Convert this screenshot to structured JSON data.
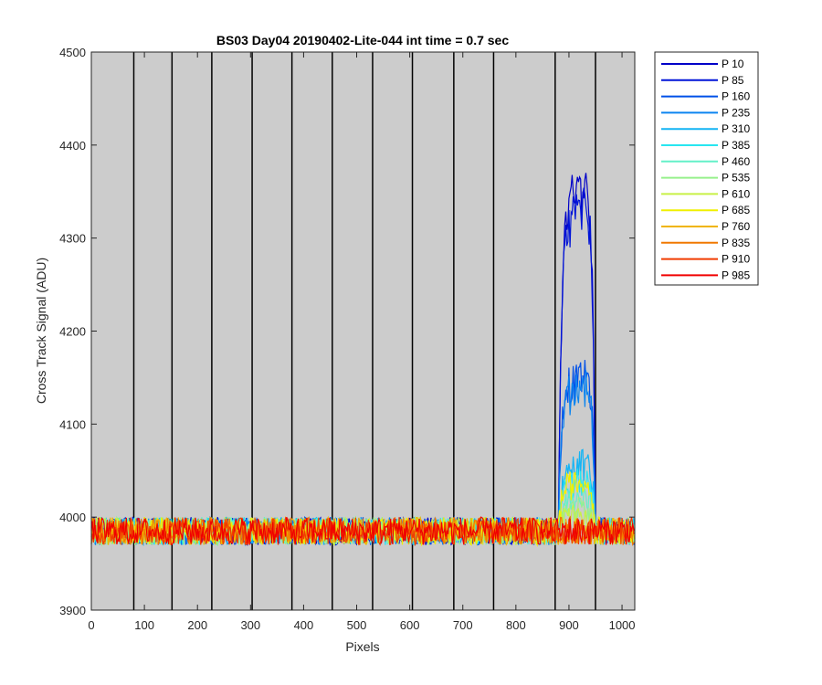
{
  "chart_data": {
    "type": "line",
    "title": "BS03 Day04 20190402-Lite-044 int time = 0.7 sec",
    "xlabel": "Pixels",
    "ylabel": "Cross Track Signal (ADU)",
    "xlim": [
      0,
      1024
    ],
    "ylim": [
      3900,
      4500
    ],
    "xticks": [
      "0",
      "100",
      "200",
      "300",
      "400",
      "500",
      "600",
      "700",
      "800",
      "900",
      "1000"
    ],
    "yticks": [
      "3900",
      "4000",
      "4100",
      "4200",
      "4300",
      "4400",
      "4500"
    ],
    "background": "#cccccc",
    "grid": false,
    "vertical_dividers": [
      80,
      152,
      227,
      303,
      378,
      454,
      530,
      605,
      683,
      758,
      874,
      950
    ],
    "baseline": 3985,
    "noise_amplitude": 15,
    "peak_region": [
      880,
      950
    ],
    "legend_position": "outside-right",
    "series": [
      {
        "name": "P 10",
        "color": "#0000c8",
        "peak": 4380
      },
      {
        "name": "P 85",
        "color": "#0014d8",
        "peak": 4360
      },
      {
        "name": "P 160",
        "color": "#0050e8",
        "peak": 4160
      },
      {
        "name": "P 235",
        "color": "#0a84f0",
        "peak": 4150
      },
      {
        "name": "P 310",
        "color": "#14b4f4",
        "peak": 4060
      },
      {
        "name": "P 385",
        "color": "#28e6f0",
        "peak": 4040
      },
      {
        "name": "P 460",
        "color": "#64f0c8",
        "peak": 4020
      },
      {
        "name": "P 535",
        "color": "#96f08c",
        "peak": 4010
      },
      {
        "name": "P 610",
        "color": "#c8f046",
        "peak": 4000
      },
      {
        "name": "P 685",
        "color": "#f0f000",
        "peak": 4040
      },
      {
        "name": "P 760",
        "color": "#f0b400",
        "peak": 3995
      },
      {
        "name": "P 835",
        "color": "#f07800",
        "peak": 3990
      },
      {
        "name": "P 910",
        "color": "#f03c00",
        "peak": 3988
      },
      {
        "name": "P 985",
        "color": "#f00000",
        "peak": 3985
      }
    ]
  }
}
